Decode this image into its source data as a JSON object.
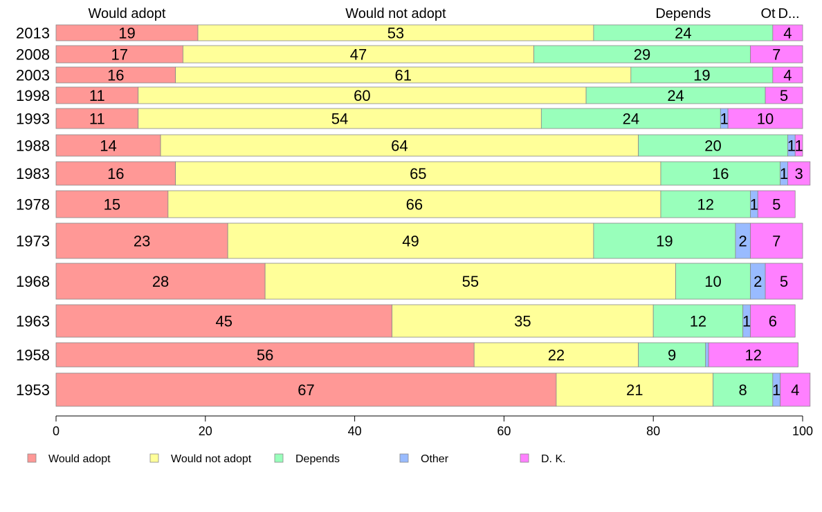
{
  "chart_data": {
    "type": "bar",
    "orientation": "horizontal",
    "stacked": true,
    "categories": [
      "2013",
      "2008",
      "2003",
      "1998",
      "1993",
      "1988",
      "1983",
      "1978",
      "1973",
      "1968",
      "1963",
      "1958",
      "1953"
    ],
    "series": [
      {
        "name": "Would adopt",
        "color": "#ff9896",
        "values": [
          19,
          17,
          16,
          11,
          11,
          14,
          16,
          15,
          23,
          28,
          45,
          56,
          67
        ]
      },
      {
        "name": "Would not adopt",
        "color": "#ffff99",
        "values": [
          53,
          47,
          61,
          60,
          54,
          64,
          65,
          66,
          49,
          55,
          35,
          22,
          21
        ]
      },
      {
        "name": "Depends",
        "color": "#99ffbb",
        "values": [
          24,
          29,
          19,
          24,
          24,
          20,
          16,
          12,
          19,
          10,
          12,
          9,
          8
        ]
      },
      {
        "name": "Other",
        "color": "#99bbff",
        "values": [
          0,
          0,
          0,
          0,
          1,
          1,
          1,
          1,
          2,
          2,
          1,
          0.4,
          1
        ]
      },
      {
        "name": "D. K.",
        "color": "#ff80ff",
        "values": [
          4,
          7,
          4,
          5,
          10,
          1,
          3,
          5,
          7,
          5,
          6,
          12,
          4
        ]
      }
    ],
    "data_labels": [
      [
        "19",
        "53",
        "24",
        "",
        "4"
      ],
      [
        "17",
        "47",
        "29",
        "",
        "7"
      ],
      [
        "16",
        "61",
        "19",
        "",
        "4"
      ],
      [
        "11",
        "60",
        "24",
        "",
        "5"
      ],
      [
        "11",
        "54",
        "24",
        "1",
        "10"
      ],
      [
        "14",
        "64",
        "20",
        "1",
        "1"
      ],
      [
        "16",
        "65",
        "16",
        "1",
        "3"
      ],
      [
        "15",
        "66",
        "12",
        "1",
        "5"
      ],
      [
        "23",
        "49",
        "19",
        "2",
        "7"
      ],
      [
        "28",
        "55",
        "10",
        "2",
        "5"
      ],
      [
        "45",
        "35",
        "12",
        "1",
        "6"
      ],
      [
        "56",
        "22",
        "9",
        "",
        "12"
      ],
      [
        "67",
        "21",
        "8",
        "1",
        "4"
      ]
    ],
    "top_labels": [
      "Would adopt",
      "Would not adopt",
      "Depends",
      "Ot",
      "D..."
    ],
    "xlim": [
      0,
      100
    ],
    "xticks": [
      0,
      20,
      40,
      60,
      80,
      100
    ],
    "legend_position": "bottom",
    "grid": false
  }
}
